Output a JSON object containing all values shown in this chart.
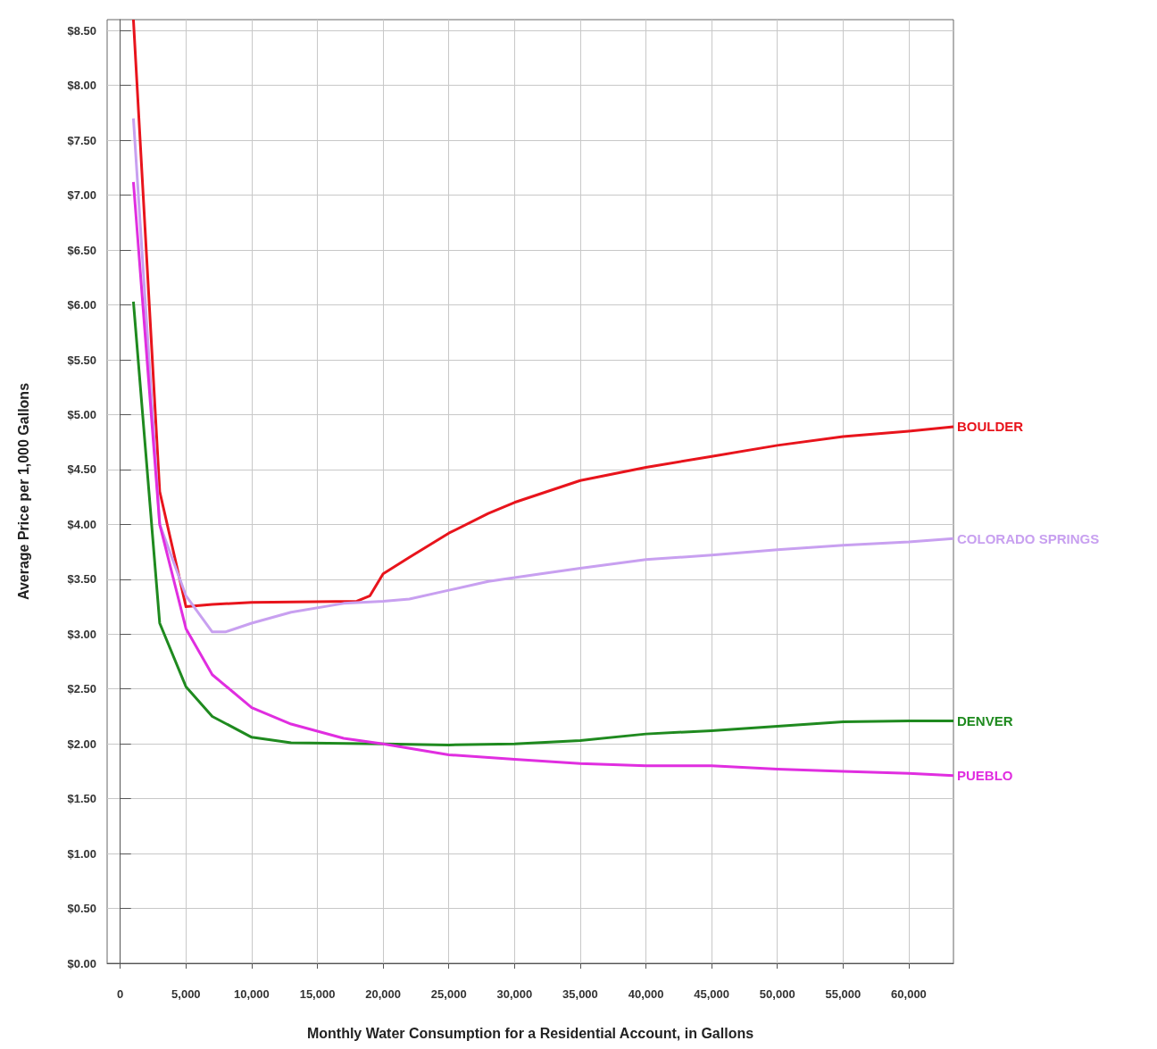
{
  "chart_data": {
    "type": "line",
    "xlabel": "Monthly Water Consumption for a Residential Account, in Gallons",
    "ylabel": "Average Price per 1,000 Gallons",
    "xlim": [
      -1000,
      63400
    ],
    "ylim": [
      0,
      8.6
    ],
    "xticks": [
      0,
      {
        "value": 5000,
        "label": "5,000"
      },
      {
        "value": 10000,
        "label": "10,000"
      },
      {
        "value": 15000,
        "label": "15,000"
      },
      {
        "value": 20000,
        "label": "20,000"
      },
      {
        "value": 25000,
        "label": "25,000"
      },
      {
        "value": 30000,
        "label": "30,000"
      },
      {
        "value": 35000,
        "label": "35,000"
      },
      {
        "value": 40000,
        "label": "40,000"
      },
      {
        "value": 45000,
        "label": "45,000"
      },
      {
        "value": 50000,
        "label": "50,000"
      },
      {
        "value": 55000,
        "label": "55,000"
      },
      {
        "value": 60000,
        "label": "60,000"
      }
    ],
    "yticks": [
      {
        "value": 0,
        "label": "$0.00"
      },
      {
        "value": 0.5,
        "label": "$0.50"
      },
      {
        "value": 1,
        "label": "$1.00"
      },
      {
        "value": 1.5,
        "label": "$1.50"
      },
      {
        "value": 2,
        "label": "$2.00"
      },
      {
        "value": 2.5,
        "label": "$2.50"
      },
      {
        "value": 3,
        "label": "$3.00"
      },
      {
        "value": 3.5,
        "label": "$3.50"
      },
      {
        "value": 4,
        "label": "$4.00"
      },
      {
        "value": 4.5,
        "label": "$4.50"
      },
      {
        "value": 5,
        "label": "$5.00"
      },
      {
        "value": 5.5,
        "label": "$5.50"
      },
      {
        "value": 6,
        "label": "$6.00"
      },
      {
        "value": 6.5,
        "label": "$6.50"
      },
      {
        "value": 7,
        "label": "$7.00"
      },
      {
        "value": 7.5,
        "label": "$7.50"
      },
      {
        "value": 8,
        "label": "$8.00"
      },
      {
        "value": 8.5,
        "label": "$8.50"
      }
    ],
    "grid": true,
    "marker": "none",
    "legend": false,
    "series": [
      {
        "name": "BOULDER",
        "color": "#e8141c",
        "x": [
          1000,
          3000,
          5000,
          7000,
          10000,
          18000,
          19000,
          20000,
          22000,
          25000,
          28000,
          30000,
          35000,
          40000,
          45000,
          50000,
          55000,
          60000,
          63400
        ],
        "values": [
          8.6,
          4.3,
          3.25,
          3.27,
          3.29,
          3.3,
          3.35,
          3.55,
          3.7,
          3.92,
          4.1,
          4.2,
          4.4,
          4.52,
          4.62,
          4.72,
          4.8,
          4.85,
          4.89
        ]
      },
      {
        "name": "COLORADO SPRINGS",
        "color": "#c8a0f0",
        "x": [
          1000,
          3000,
          5000,
          7000,
          8000,
          10000,
          13000,
          17000,
          20000,
          22000,
          25000,
          28000,
          32000,
          35000,
          40000,
          45000,
          50000,
          55000,
          60000,
          63400
        ],
        "values": [
          7.7,
          4.0,
          3.35,
          3.02,
          3.02,
          3.1,
          3.2,
          3.28,
          3.3,
          3.32,
          3.4,
          3.48,
          3.55,
          3.6,
          3.68,
          3.72,
          3.77,
          3.81,
          3.84,
          3.87
        ]
      },
      {
        "name": "DENVER",
        "color": "#1f8a1f",
        "x": [
          1000,
          3000,
          5000,
          7000,
          10000,
          13000,
          20000,
          25000,
          30000,
          35000,
          40000,
          45000,
          50000,
          55000,
          60000,
          63400
        ],
        "values": [
          6.03,
          3.1,
          2.52,
          2.25,
          2.06,
          2.01,
          2.0,
          1.99,
          2.0,
          2.03,
          2.09,
          2.12,
          2.16,
          2.2,
          2.21,
          2.21
        ]
      },
      {
        "name": "PUEBLO",
        "color": "#e02ee0",
        "x": [
          1000,
          3000,
          5000,
          7000,
          10000,
          13000,
          17000,
          20000,
          25000,
          30000,
          35000,
          40000,
          45000,
          50000,
          55000,
          60000,
          63400
        ],
        "values": [
          7.12,
          4.0,
          3.05,
          2.63,
          2.33,
          2.18,
          2.05,
          2.0,
          1.9,
          1.86,
          1.82,
          1.8,
          1.8,
          1.77,
          1.75,
          1.73,
          1.71
        ]
      }
    ]
  }
}
